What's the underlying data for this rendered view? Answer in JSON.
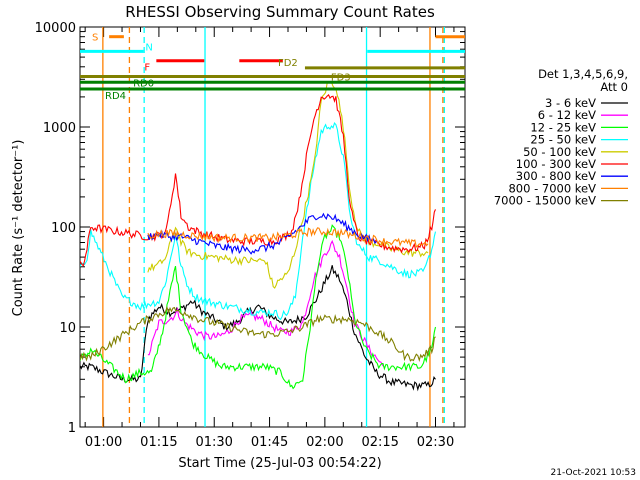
{
  "chart_data": {
    "type": "line",
    "title": "RHESSI Observing Summary Count Rates",
    "xlabel": "Start Time (25-Jul-03 00:54:22)",
    "ylabel": "Count Rate (s⁻¹ detector⁻¹)",
    "y_scale": "log",
    "ylim": [
      1,
      10000
    ],
    "xlim_minutes": [
      -6.4,
      98
    ],
    "x_ticks": [
      {
        "label": "01:00",
        "min": 0
      },
      {
        "label": "01:15",
        "min": 15
      },
      {
        "label": "01:30",
        "min": 30
      },
      {
        "label": "01:45",
        "min": 45
      },
      {
        "label": "02:00",
        "min": 60
      },
      {
        "label": "02:15",
        "min": 75
      },
      {
        "label": "02:30",
        "min": 90
      }
    ],
    "y_ticks": [
      {
        "label": "1",
        "value": 1
      },
      {
        "label": "10",
        "value": 10
      },
      {
        "label": "100",
        "value": 100
      },
      {
        "label": "1000",
        "value": 1000
      },
      {
        "label": "10000",
        "value": 10000
      }
    ],
    "legend": {
      "header_line1": "Det 1,3,4,5,6,9,",
      "header_line2": "Att 0",
      "position": "right"
    },
    "series": [
      {
        "name": "3 - 6 keV",
        "color": "#000000",
        "points": [
          [
            -6.4,
            4
          ],
          [
            -5,
            4
          ],
          [
            -3.5,
            4
          ],
          [
            5,
            3
          ],
          [
            10,
            3
          ],
          [
            12,
            12
          ],
          [
            15,
            16
          ],
          [
            18,
            14
          ],
          [
            21,
            15
          ],
          [
            24,
            18
          ],
          [
            27,
            14
          ],
          [
            30,
            12
          ],
          [
            33,
            10
          ],
          [
            36,
            11
          ],
          [
            39,
            14
          ],
          [
            42,
            16
          ],
          [
            45,
            13
          ],
          [
            47,
            12
          ],
          [
            50,
            11
          ],
          [
            53,
            12
          ],
          [
            55,
            13
          ],
          [
            58,
            20
          ],
          [
            60,
            28
          ],
          [
            62,
            38
          ],
          [
            64,
            30
          ],
          [
            66,
            18
          ],
          [
            68,
            9
          ],
          [
            71,
            5
          ],
          [
            74,
            3.5
          ],
          [
            78,
            2.8
          ],
          [
            84,
            2.6
          ],
          [
            88,
            2.6
          ],
          [
            90,
            3
          ]
        ]
      },
      {
        "name": "6 - 12 keV",
        "color": "#ff00ff",
        "points": [
          [
            12,
            5
          ],
          [
            15,
            11
          ],
          [
            18,
            12
          ],
          [
            20,
            14
          ],
          [
            22,
            11
          ],
          [
            25,
            9
          ],
          [
            28,
            8
          ],
          [
            31,
            8
          ],
          [
            34,
            9
          ],
          [
            37,
            12
          ],
          [
            40,
            13
          ],
          [
            43,
            12
          ],
          [
            46,
            10
          ],
          [
            48,
            9
          ],
          [
            51,
            9
          ],
          [
            54,
            11
          ],
          [
            57,
            30
          ],
          [
            60,
            55
          ],
          [
            62,
            68
          ],
          [
            64,
            50
          ],
          [
            66,
            25
          ],
          [
            68,
            11
          ],
          [
            72,
            6
          ],
          [
            76,
            4
          ]
        ]
      },
      {
        "name": "12 - 25 keV",
        "color": "#00ff00",
        "points": [
          [
            -6.4,
            5
          ],
          [
            -5,
            5
          ],
          [
            -3.5,
            6
          ],
          [
            6,
            3
          ],
          [
            10,
            3.5
          ],
          [
            13,
            3.5
          ],
          [
            16,
            9
          ],
          [
            18,
            22
          ],
          [
            19.5,
            40
          ],
          [
            21,
            15
          ],
          [
            24,
            7
          ],
          [
            28,
            5
          ],
          [
            32,
            4
          ],
          [
            36,
            4
          ],
          [
            40,
            4
          ],
          [
            44,
            4
          ],
          [
            48,
            3.5
          ],
          [
            51,
            2.5
          ],
          [
            54,
            3
          ],
          [
            56,
            10
          ],
          [
            58,
            40
          ],
          [
            60,
            80
          ],
          [
            62,
            95
          ],
          [
            64,
            80
          ],
          [
            66,
            40
          ],
          [
            68,
            12
          ],
          [
            71,
            6
          ],
          [
            75,
            4
          ],
          [
            80,
            4
          ],
          [
            86,
            4
          ],
          [
            89,
            6
          ],
          [
            90,
            10
          ]
        ]
      },
      {
        "name": "25 - 50 keV",
        "color": "#00ffff",
        "points": [
          [
            -6.4,
            40
          ],
          [
            -5.5,
            40
          ],
          [
            -4.5,
            50
          ],
          [
            -3.5,
            90
          ],
          [
            5,
            20
          ],
          [
            10,
            16
          ],
          [
            12,
            17
          ],
          [
            15,
            18
          ],
          [
            17,
            30
          ],
          [
            19.5,
            85
          ],
          [
            21,
            40
          ],
          [
            23,
            25
          ],
          [
            25,
            20
          ],
          [
            28,
            18
          ],
          [
            31,
            17
          ],
          [
            34,
            16
          ],
          [
            38,
            15
          ],
          [
            42,
            14
          ],
          [
            46,
            14
          ],
          [
            48,
            13
          ],
          [
            50,
            14
          ],
          [
            52,
            20
          ],
          [
            54,
            80
          ],
          [
            57,
            400
          ],
          [
            59,
            900
          ],
          [
            61,
            1050
          ],
          [
            63,
            1000
          ],
          [
            65,
            500
          ],
          [
            67,
            120
          ],
          [
            69,
            65
          ],
          [
            72,
            50
          ],
          [
            75,
            46
          ],
          [
            78,
            40
          ],
          [
            82,
            34
          ],
          [
            85,
            34
          ],
          [
            87,
            36
          ],
          [
            89,
            60
          ],
          [
            90,
            90
          ]
        ]
      },
      {
        "name": "50 - 100 keV",
        "color": "#cccc00",
        "points": [
          [
            12,
            38
          ],
          [
            15,
            42
          ],
          [
            17,
            50
          ],
          [
            19.5,
            100
          ],
          [
            21,
            70
          ],
          [
            23,
            56
          ],
          [
            26,
            52
          ],
          [
            30,
            50
          ],
          [
            35,
            47
          ],
          [
            40,
            46
          ],
          [
            44,
            46
          ],
          [
            46,
            25
          ],
          [
            48,
            30
          ],
          [
            50,
            34
          ],
          [
            52,
            60
          ],
          [
            54,
            120
          ],
          [
            57,
            400
          ],
          [
            59,
            1800
          ],
          [
            61,
            2800
          ],
          [
            63,
            2600
          ],
          [
            65,
            1000
          ],
          [
            67,
            200
          ],
          [
            69,
            90
          ],
          [
            72,
            70
          ],
          [
            75,
            68
          ],
          [
            78,
            60
          ],
          [
            80,
            58
          ],
          [
            83,
            55
          ],
          [
            86,
            55
          ],
          [
            88,
            55
          ]
        ]
      },
      {
        "name": "100 - 300 keV",
        "color": "#ff0000",
        "points": [
          [
            -6.4,
            42
          ],
          [
            -5.5,
            42
          ],
          [
            -4.5,
            60
          ],
          [
            -3.5,
            100
          ],
          [
            12,
            80
          ],
          [
            15,
            82
          ],
          [
            17,
            90
          ],
          [
            19.5,
            340
          ],
          [
            21,
            130
          ],
          [
            23,
            100
          ],
          [
            26,
            88
          ],
          [
            30,
            80
          ],
          [
            34,
            74
          ],
          [
            38,
            72
          ],
          [
            42,
            72
          ],
          [
            46,
            72
          ],
          [
            49,
            80
          ],
          [
            51,
            90
          ],
          [
            53,
            180
          ],
          [
            55,
            500
          ],
          [
            57,
            1200
          ],
          [
            59,
            2000
          ],
          [
            61,
            2100
          ],
          [
            63,
            1900
          ],
          [
            65,
            800
          ],
          [
            67,
            150
          ],
          [
            69,
            80
          ],
          [
            72,
            70
          ],
          [
            75,
            66
          ],
          [
            78,
            62
          ],
          [
            82,
            60
          ],
          [
            85,
            62
          ],
          [
            87,
            65
          ],
          [
            89,
            100
          ],
          [
            90,
            150
          ]
        ]
      },
      {
        "name": "300 - 800 keV",
        "color": "#0000ff",
        "points": [
          [
            12,
            80
          ],
          [
            15,
            85
          ],
          [
            18,
            80
          ],
          [
            21,
            80
          ],
          [
            24,
            75
          ],
          [
            27,
            70
          ],
          [
            30,
            65
          ],
          [
            33,
            62
          ],
          [
            36,
            60
          ],
          [
            40,
            59
          ],
          [
            44,
            62
          ],
          [
            48,
            70
          ],
          [
            52,
            90
          ],
          [
            56,
            120
          ],
          [
            58,
            132
          ],
          [
            60,
            130
          ],
          [
            62,
            125
          ],
          [
            64,
            115
          ],
          [
            66,
            100
          ],
          [
            68,
            90
          ],
          [
            70,
            80
          ],
          [
            72,
            75
          ],
          [
            74,
            72
          ]
        ]
      },
      {
        "name": "800 - 7000 keV",
        "color": "#ff8000",
        "points": [
          [
            12,
            82
          ],
          [
            16,
            86
          ],
          [
            20,
            86
          ],
          [
            24,
            82
          ],
          [
            28,
            80
          ],
          [
            32,
            78
          ],
          [
            36,
            78
          ],
          [
            40,
            78
          ],
          [
            44,
            78
          ],
          [
            48,
            80
          ],
          [
            52,
            85
          ],
          [
            56,
            90
          ],
          [
            60,
            90
          ],
          [
            64,
            88
          ],
          [
            68,
            82
          ],
          [
            72,
            78
          ],
          [
            76,
            72
          ],
          [
            80,
            70
          ],
          [
            84,
            68
          ],
          [
            88,
            68
          ]
        ]
      },
      {
        "name": "7000 - 15000 keV",
        "color": "#808000",
        "points": [
          [
            -6.4,
            5
          ],
          [
            -5,
            5
          ],
          [
            -3.5,
            5
          ],
          [
            10,
            11
          ],
          [
            14,
            13
          ],
          [
            18,
            15
          ],
          [
            22,
            14
          ],
          [
            26,
            12
          ],
          [
            30,
            11
          ],
          [
            34,
            10
          ],
          [
            38,
            9
          ],
          [
            42,
            8.5
          ],
          [
            46,
            8.5
          ],
          [
            50,
            9
          ],
          [
            54,
            10
          ],
          [
            58,
            12
          ],
          [
            62,
            12
          ],
          [
            66,
            12
          ],
          [
            70,
            11
          ],
          [
            74,
            9
          ],
          [
            78,
            7
          ],
          [
            82,
            5
          ],
          [
            86,
            5
          ],
          [
            89,
            6
          ],
          [
            90,
            8
          ]
        ]
      }
    ],
    "annotations": [
      {
        "label": "S",
        "color": "#ff8000",
        "x0": 1.5,
        "x1": 5.5,
        "y": 8000
      },
      {
        "label": "",
        "color": "#ff8000",
        "x0": 90,
        "x1": 98,
        "y": 8000
      },
      {
        "label": "N",
        "color": "#00ffff",
        "x0": -6.4,
        "x1": 10.8,
        "y": 5700
      },
      {
        "label": "",
        "color": "#00ffff",
        "x0": 71.5,
        "x1": 98,
        "y": 5700
      },
      {
        "label": "F",
        "color": "#ff0000",
        "x0": 14.3,
        "x1": 27.3,
        "y": 4600
      },
      {
        "label": "",
        "color": "#ff0000",
        "x0": 36.8,
        "x1": 48.6,
        "y": 4600
      },
      {
        "label": "FD2",
        "color": "#808000",
        "x0": 54.6,
        "x1": 98,
        "y": 3900
      },
      {
        "label": "FD3",
        "color": "#808000",
        "x0": -6.4,
        "x1": 98,
        "y": 3200
      },
      {
        "label": "RD0",
        "color": "#008000",
        "x0": -6.4,
        "x1": 98,
        "y": 2800
      },
      {
        "label": "RD4",
        "color": "#008000",
        "x0": -6.4,
        "x1": 98,
        "y": 2400
      }
    ],
    "vertical_markers": [
      {
        "min": -0.2,
        "color": "#ff8000",
        "style": "solid"
      },
      {
        "min": 7.0,
        "color": "#ff8000",
        "style": "dashed"
      },
      {
        "min": 11.0,
        "color": "#00ffff",
        "style": "dashed"
      },
      {
        "min": 27.5,
        "color": "#00ffff",
        "style": "solid"
      },
      {
        "min": 71.3,
        "color": "#00ffff",
        "style": "solid"
      },
      {
        "min": 88.5,
        "color": "#ff8000",
        "style": "solid"
      },
      {
        "min": 92.0,
        "color": "#ff8000",
        "style": "dashed"
      },
      {
        "min": 92.4,
        "color": "#00ffff",
        "style": "dashed"
      }
    ]
  },
  "footer": {
    "date_stamp": "21-Oct-2021 10:53"
  }
}
